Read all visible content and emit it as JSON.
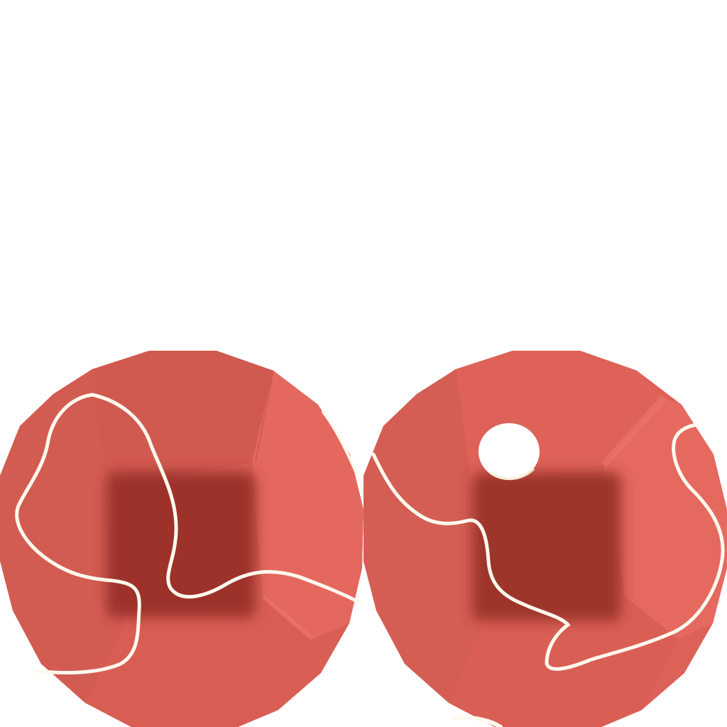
{
  "scene": {
    "background": "#ffffff",
    "objects": [
      {
        "kind": "ball",
        "side": "left",
        "color": "#d95f55",
        "shadow_color": "#9c3329",
        "line_color": "#fff9ee",
        "has_spot": false
      },
      {
        "kind": "ball",
        "side": "right",
        "color": "#dc6156",
        "shadow_color": "#9e3429",
        "line_color": "#fff9ee",
        "has_spot": true,
        "spot_color": "#ffffff"
      }
    ]
  }
}
